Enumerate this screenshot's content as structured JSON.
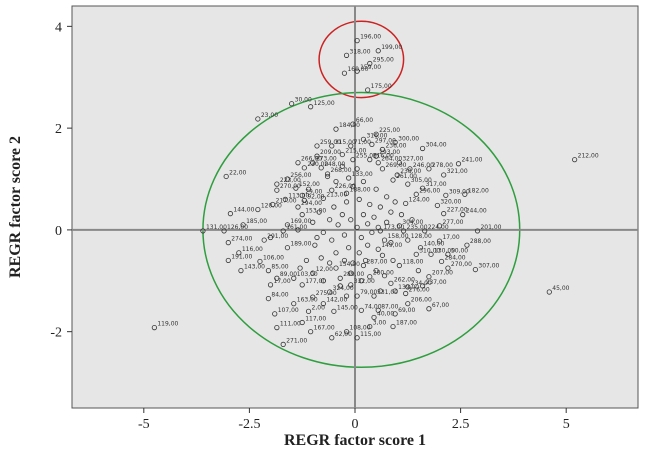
{
  "chart_data": {
    "type": "scatter",
    "xlabel": "REGR factor score 1",
    "ylabel": "REGR factor score 2",
    "xlim": [
      -6.7,
      6.7
    ],
    "ylim": [
      -3.5,
      4.4
    ],
    "xticks": [
      {
        "value": -5,
        "label": "-5"
      },
      {
        "value": -2.5,
        "label": "-2.5"
      },
      {
        "value": 0,
        "label": "0"
      },
      {
        "value": 2.5,
        "label": "2.5"
      },
      {
        "value": 5,
        "label": "5"
      }
    ],
    "yticks": [
      {
        "value": -2,
        "label": "-2"
      },
      {
        "value": 0,
        "label": "0"
      },
      {
        "value": 2,
        "label": "2"
      },
      {
        "value": 4,
        "label": "4"
      }
    ],
    "grid": false,
    "background_color": "#e6e6e6",
    "reference_line_color": "#888888",
    "labeled_points": [
      {
        "label": "196,00",
        "x": 0.05,
        "y": 3.72
      },
      {
        "label": "199,00",
        "x": 0.55,
        "y": 3.52
      },
      {
        "label": "318,00",
        "x": -0.2,
        "y": 3.43
      },
      {
        "label": "295,00",
        "x": 0.35,
        "y": 3.27
      },
      {
        "label": "159,00",
        "x": 0.05,
        "y": 3.12
      },
      {
        "label": "160,00",
        "x": -0.25,
        "y": 3.08
      },
      {
        "label": "175,00",
        "x": 0.3,
        "y": 2.75
      },
      {
        "label": "30,00",
        "x": -1.5,
        "y": 2.48
      },
      {
        "label": "125,00",
        "x": -1.05,
        "y": 2.42
      },
      {
        "label": "23,00",
        "x": -2.3,
        "y": 2.18
      },
      {
        "label": "66,00",
        "x": -0.05,
        "y": 2.08
      },
      {
        "label": "184,00",
        "x": -0.45,
        "y": 1.98
      },
      {
        "label": "225,00",
        "x": 0.5,
        "y": 1.88
      },
      {
        "label": "316,00",
        "x": 0.2,
        "y": 1.78
      },
      {
        "label": "300,00",
        "x": 0.95,
        "y": 1.72
      },
      {
        "label": "297,00",
        "x": 0.4,
        "y": 1.68
      },
      {
        "label": "259,00",
        "x": -0.9,
        "y": 1.65
      },
      {
        "label": "315,00",
        "x": -0.55,
        "y": 1.65
      },
      {
        "label": "71,00",
        "x": -0.1,
        "y": 1.65
      },
      {
        "label": "304,00",
        "x": 1.6,
        "y": 1.6
      },
      {
        "label": "236,00",
        "x": 0.65,
        "y": 1.58
      },
      {
        "label": "215,00",
        "x": -0.3,
        "y": 1.48
      },
      {
        "label": "209,00",
        "x": -0.9,
        "y": 1.45
      },
      {
        "label": "293,00",
        "x": 0.5,
        "y": 1.45
      },
      {
        "label": "255,00",
        "x": -0.05,
        "y": 1.38
      },
      {
        "label": "216,00",
        "x": 0.35,
        "y": 1.38
      },
      {
        "label": "266,00",
        "x": -1.35,
        "y": 1.32
      },
      {
        "label": "273,00",
        "x": -1.0,
        "y": 1.32
      },
      {
        "label": "264,00",
        "x": 0.55,
        "y": 1.32
      },
      {
        "label": "327,00",
        "x": 1.05,
        "y": 1.32
      },
      {
        "label": "241,00",
        "x": 2.45,
        "y": 1.3
      },
      {
        "label": "212,00",
        "x": 5.2,
        "y": 1.38
      },
      {
        "label": "230,00",
        "x": -1.2,
        "y": 1.22
      },
      {
        "label": "248,00",
        "x": -0.8,
        "y": 1.22
      },
      {
        "label": "269,00",
        "x": 0.65,
        "y": 1.2
      },
      {
        "label": "246,00",
        "x": 1.3,
        "y": 1.2
      },
      {
        "label": "278,00",
        "x": 1.75,
        "y": 1.2
      },
      {
        "label": "22,00",
        "x": -3.05,
        "y": 1.05
      },
      {
        "label": "321,00",
        "x": 2.1,
        "y": 1.08
      },
      {
        "label": "268,00",
        "x": -0.65,
        "y": 1.1
      },
      {
        "label": "238,00",
        "x": 1.0,
        "y": 1.08
      },
      {
        "label": "133,00",
        "x": -0.15,
        "y": 1.02
      },
      {
        "label": "261,00",
        "x": 0.9,
        "y": 0.98
      },
      {
        "label": "305,00",
        "x": 1.25,
        "y": 0.9
      },
      {
        "label": "256,00",
        "x": -1.6,
        "y": 1.0
      },
      {
        "label": "223,00",
        "x": -1.85,
        "y": 0.9
      },
      {
        "label": "317,00",
        "x": 1.6,
        "y": 0.82
      },
      {
        "label": "152,00",
        "x": -1.4,
        "y": 0.82
      },
      {
        "label": "270,00",
        "x": -1.85,
        "y": 0.78
      },
      {
        "label": "226,00",
        "x": -0.55,
        "y": 0.78
      },
      {
        "label": "188,00",
        "x": -0.2,
        "y": 0.72
      },
      {
        "label": "182,00",
        "x": 2.6,
        "y": 0.7
      },
      {
        "label": "296,00",
        "x": 1.45,
        "y": 0.7
      },
      {
        "label": "309,00",
        "x": 2.15,
        "y": 0.68
      },
      {
        "label": "29,00",
        "x": -1.25,
        "y": 0.68
      },
      {
        "label": "113,00",
        "x": -1.65,
        "y": 0.6
      },
      {
        "label": "92,00",
        "x": -1.2,
        "y": 0.58
      },
      {
        "label": "213,00",
        "x": -0.75,
        "y": 0.62
      },
      {
        "label": "124,00",
        "x": 1.2,
        "y": 0.52
      },
      {
        "label": "320,00",
        "x": 1.95,
        "y": 0.48
      },
      {
        "label": "217,00",
        "x": -1.95,
        "y": 0.5
      },
      {
        "label": "120,00",
        "x": -2.3,
        "y": 0.4
      },
      {
        "label": "294,00",
        "x": -1.35,
        "y": 0.45
      },
      {
        "label": "144,00",
        "x": -2.95,
        "y": 0.32
      },
      {
        "label": "244,00",
        "x": 2.55,
        "y": 0.3
      },
      {
        "label": "153,00",
        "x": -1.25,
        "y": 0.3
      },
      {
        "label": "227,00",
        "x": 2.1,
        "y": 0.32
      },
      {
        "label": "185,00",
        "x": -2.65,
        "y": 0.1
      },
      {
        "label": "169,00",
        "x": -1.6,
        "y": 0.1
      },
      {
        "label": "304,00",
        "x": 1.05,
        "y": 0.08
      },
      {
        "label": "277,00",
        "x": 2.0,
        "y": 0.08
      },
      {
        "label": "131,00",
        "x": -3.6,
        "y": -0.02
      },
      {
        "label": "126,00",
        "x": -3.1,
        "y": -0.02
      },
      {
        "label": "161,00",
        "x": -1.7,
        "y": -0.02
      },
      {
        "label": "173,00",
        "x": 0.6,
        "y": -0.02
      },
      {
        "label": "235,00",
        "x": 1.15,
        "y": -0.02
      },
      {
        "label": "224,00",
        "x": 1.65,
        "y": -0.02
      },
      {
        "label": "201,00",
        "x": 2.9,
        "y": -0.02
      },
      {
        "label": "274,00",
        "x": -3.0,
        "y": -0.25
      },
      {
        "label": "291,00",
        "x": -2.15,
        "y": -0.2
      },
      {
        "label": "158,00",
        "x": 0.7,
        "y": -0.2
      },
      {
        "label": "128,00",
        "x": 1.25,
        "y": -0.2
      },
      {
        "label": "17,00",
        "x": 2.0,
        "y": -0.22
      },
      {
        "label": "288,00",
        "x": 2.65,
        "y": -0.3
      },
      {
        "label": "116,00",
        "x": -2.75,
        "y": -0.45
      },
      {
        "label": "189,00",
        "x": -1.6,
        "y": -0.35
      },
      {
        "label": "149,00",
        "x": 0.55,
        "y": -0.38
      },
      {
        "label": "140,00",
        "x": 1.55,
        "y": -0.35
      },
      {
        "label": "191,00",
        "x": -3.0,
        "y": -0.6
      },
      {
        "label": "106,00",
        "x": -2.25,
        "y": -0.62
      },
      {
        "label": "310,00",
        "x": 1.45,
        "y": -0.48
      },
      {
        "label": "130,00",
        "x": 1.8,
        "y": -0.48
      },
      {
        "label": "50,00",
        "x": 2.2,
        "y": -0.48
      },
      {
        "label": "143,00",
        "x": -2.7,
        "y": -0.8
      },
      {
        "label": "85,00",
        "x": -2.05,
        "y": -0.8
      },
      {
        "label": "284,00",
        "x": 2.05,
        "y": -0.62
      },
      {
        "label": "89,00",
        "x": -1.85,
        "y": -0.95
      },
      {
        "label": "103,00",
        "x": -1.45,
        "y": -0.95
      },
      {
        "label": "12,00",
        "x": -1.0,
        "y": -0.85
      },
      {
        "label": "154,00",
        "x": -0.45,
        "y": -0.75
      },
      {
        "label": "287,00",
        "x": 0.2,
        "y": -0.7
      },
      {
        "label": "118,00",
        "x": 1.05,
        "y": -0.7
      },
      {
        "label": "270,00",
        "x": 2.2,
        "y": -0.75
      },
      {
        "label": "307,00",
        "x": 2.85,
        "y": -0.78
      },
      {
        "label": "289,00",
        "x": -0.35,
        "y": -0.95
      },
      {
        "label": "280,00",
        "x": 0.35,
        "y": -0.92
      },
      {
        "label": "207,00",
        "x": 1.75,
        "y": -0.92
      },
      {
        "label": "17,00",
        "x": -2.0,
        "y": -1.08
      },
      {
        "label": "177,00",
        "x": -1.25,
        "y": -1.08
      },
      {
        "label": "332,00",
        "x": -0.1,
        "y": -1.08
      },
      {
        "label": "262,00",
        "x": 0.85,
        "y": -1.05
      },
      {
        "label": "237,00",
        "x": 1.6,
        "y": -1.1
      },
      {
        "label": "234,00",
        "x": 1.25,
        "y": -1.12
      },
      {
        "label": "324,00",
        "x": -0.6,
        "y": -1.22
      },
      {
        "label": "139,00",
        "x": 0.95,
        "y": -1.2
      },
      {
        "label": "276,00",
        "x": 1.2,
        "y": -1.25
      },
      {
        "label": "45,00",
        "x": 4.6,
        "y": -1.22
      },
      {
        "label": "275,00",
        "x": -1.0,
        "y": -1.32
      },
      {
        "label": "79,00",
        "x": 0.05,
        "y": -1.3
      },
      {
        "label": "331,00",
        "x": 0.45,
        "y": -1.3
      },
      {
        "label": "84,00",
        "x": -2.05,
        "y": -1.35
      },
      {
        "label": "163,00",
        "x": -1.45,
        "y": -1.45
      },
      {
        "label": "142,00",
        "x": -0.75,
        "y": -1.45
      },
      {
        "label": "206,00",
        "x": 1.25,
        "y": -1.45
      },
      {
        "label": "67,00",
        "x": 1.75,
        "y": -1.55
      },
      {
        "label": "2,00",
        "x": -1.1,
        "y": -1.6
      },
      {
        "label": "145,00",
        "x": -0.5,
        "y": -1.6
      },
      {
        "label": "74,00",
        "x": 0.15,
        "y": -1.58
      },
      {
        "label": "87,00",
        "x": 0.55,
        "y": -1.58
      },
      {
        "label": "69,00",
        "x": 0.95,
        "y": -1.65
      },
      {
        "label": "107,00",
        "x": -1.9,
        "y": -1.65
      },
      {
        "label": "40,00",
        "x": 0.45,
        "y": -1.72
      },
      {
        "label": "117,00",
        "x": -1.25,
        "y": -1.82
      },
      {
        "label": "119,00",
        "x": -4.75,
        "y": -1.92
      },
      {
        "label": "111,00",
        "x": -1.85,
        "y": -1.92
      },
      {
        "label": "3,00",
        "x": 0.35,
        "y": -1.9
      },
      {
        "label": "187,00",
        "x": 0.9,
        "y": -1.9
      },
      {
        "label": "167,00",
        "x": -1.05,
        "y": -2.0
      },
      {
        "label": "108,00",
        "x": -0.2,
        "y": -2.0
      },
      {
        "label": "62,00",
        "x": -0.55,
        "y": -2.12
      },
      {
        "label": "115,00",
        "x": 0.05,
        "y": -2.12
      },
      {
        "label": "271,00",
        "x": -1.7,
        "y": -2.25
      }
    ],
    "unlabeled_points": [
      [
        -0.2,
        0.55
      ],
      [
        0.1,
        0.6
      ],
      [
        0.35,
        0.5
      ],
      [
        -0.5,
        0.45
      ],
      [
        0.6,
        0.45
      ],
      [
        -0.85,
        0.35
      ],
      [
        0.85,
        0.35
      ],
      [
        -0.3,
        0.3
      ],
      [
        0.2,
        0.3
      ],
      [
        0.45,
        0.25
      ],
      [
        -0.6,
        0.2
      ],
      [
        -0.1,
        0.2
      ],
      [
        0.75,
        0.15
      ],
      [
        -1.0,
        0.15
      ],
      [
        0.3,
        0.12
      ],
      [
        -0.4,
        0.1
      ],
      [
        0.05,
        0.05
      ],
      [
        -0.75,
        -0.05
      ],
      [
        0.4,
        -0.05
      ],
      [
        -0.25,
        -0.1
      ],
      [
        0.15,
        -0.15
      ],
      [
        -0.55,
        -0.2
      ],
      [
        0.85,
        -0.25
      ],
      [
        -0.95,
        -0.3
      ],
      [
        0.3,
        -0.3
      ],
      [
        -0.15,
        -0.35
      ],
      [
        -0.45,
        -0.45
      ],
      [
        0.1,
        -0.45
      ],
      [
        0.65,
        -0.5
      ],
      [
        -0.8,
        -0.55
      ],
      [
        0.25,
        -0.6
      ],
      [
        -0.25,
        -0.6
      ],
      [
        0.9,
        -0.6
      ],
      [
        -1.15,
        -0.6
      ],
      [
        -0.6,
        -0.65
      ],
      [
        0.5,
        -0.8
      ],
      [
        -0.1,
        -0.85
      ],
      [
        0.7,
        -0.9
      ],
      [
        -0.75,
        -1.0
      ],
      [
        0.15,
        -1.0
      ],
      [
        -0.35,
        -1.1
      ],
      [
        0.6,
        -1.2
      ],
      [
        -0.2,
        -1.3
      ],
      [
        -0.05,
        0.85
      ],
      [
        0.5,
        0.8
      ],
      [
        -0.45,
        0.95
      ],
      [
        0.2,
        0.95
      ],
      [
        0.75,
        0.65
      ],
      [
        -1.1,
        0.8
      ],
      [
        -0.65,
        1.05
      ],
      [
        0.05,
        1.2
      ],
      [
        -0.3,
        1.25
      ],
      [
        1.1,
        0.3
      ],
      [
        1.35,
        0.2
      ],
      [
        -1.35,
        0.0
      ],
      [
        -2.0,
        -0.15
      ],
      [
        -1.3,
        -0.75
      ],
      [
        1.5,
        -0.8
      ],
      [
        -0.9,
        -0.15
      ],
      [
        0.55,
        0.05
      ],
      [
        -0.05,
        -0.65
      ],
      [
        0.95,
        0.55
      ]
    ],
    "annotations": [
      {
        "shape": "ellipse",
        "color": "#cc2222",
        "cx": 0.15,
        "cy": 3.35,
        "rx": 1.0,
        "ry": 0.75
      },
      {
        "shape": "ellipse",
        "color": "#2e9e3e",
        "cx": 0.15,
        "cy": 0.0,
        "rx": 3.75,
        "ry": 2.7
      }
    ]
  }
}
